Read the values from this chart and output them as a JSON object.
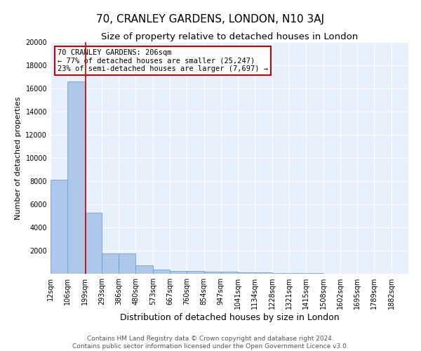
{
  "title1": "70, CRANLEY GARDENS, LONDON, N10 3AJ",
  "title2": "Size of property relative to detached houses in London",
  "xlabel": "Distribution of detached houses by size in London",
  "ylabel": "Number of detached properties",
  "bin_labels": [
    "12sqm",
    "106sqm",
    "199sqm",
    "293sqm",
    "386sqm",
    "480sqm",
    "573sqm",
    "667sqm",
    "760sqm",
    "854sqm",
    "947sqm",
    "1041sqm",
    "1134sqm",
    "1228sqm",
    "1321sqm",
    "1415sqm",
    "1508sqm",
    "1602sqm",
    "1695sqm",
    "1789sqm",
    "1882sqm"
  ],
  "bar_heights": [
    8100,
    16600,
    5300,
    1750,
    1750,
    700,
    350,
    250,
    225,
    200,
    175,
    150,
    130,
    75,
    65,
    50,
    30,
    25,
    15,
    10,
    5
  ],
  "bar_color": "#aec6e8",
  "bar_edge_color": "#5b9bd5",
  "annotation_text": "70 CRANLEY GARDENS: 206sqm\n← 77% of detached houses are smaller (25,247)\n23% of semi-detached houses are larger (7,697) →",
  "annotation_box_color": "#ffffff",
  "annotation_box_edge_color": "#cc0000",
  "red_line_color": "#cc0000",
  "ylim": [
    0,
    20000
  ],
  "yticks": [
    0,
    2000,
    4000,
    6000,
    8000,
    10000,
    12000,
    14000,
    16000,
    18000,
    20000
  ],
  "background_color": "#e8f0fb",
  "footer_line1": "Contains HM Land Registry data © Crown copyright and database right 2024.",
  "footer_line2": "Contains public sector information licensed under the Open Government Licence v3.0.",
  "title1_fontsize": 11,
  "title2_fontsize": 9.5,
  "xlabel_fontsize": 9,
  "ylabel_fontsize": 8,
  "tick_fontsize": 7,
  "footer_fontsize": 6.5,
  "annotation_fontsize": 7.5
}
